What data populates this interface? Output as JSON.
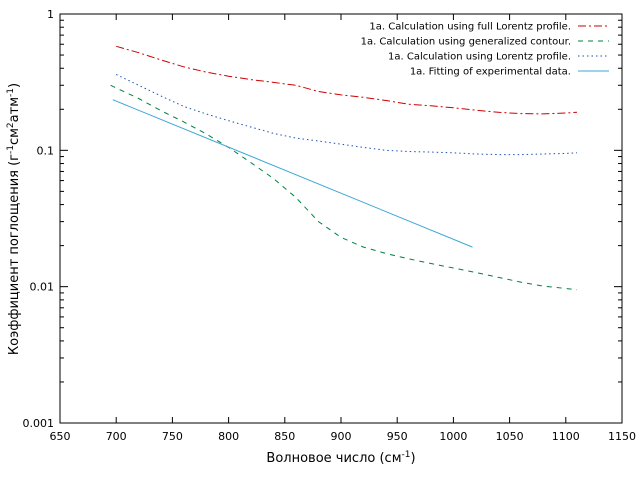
{
  "chart_data": {
    "type": "line",
    "xlabel": "Волновое число (см",
    "xlabel_sup": "-1",
    "xlabel_tail": ")",
    "ylabel_parts": [
      "Коэффициент поглощения (г",
      "-1",
      "см",
      "2",
      "атм",
      "-1",
      ")"
    ],
    "xlim": [
      650,
      1150
    ],
    "ylim": [
      0.001,
      1
    ],
    "yscale": "log",
    "grid": false,
    "legend_position": "top-right",
    "x_ticks": [
      650,
      700,
      750,
      800,
      850,
      900,
      950,
      1000,
      1050,
      1100,
      1150
    ],
    "x_tick_labels": [
      "650",
      "700",
      "750",
      "800",
      "850",
      "900",
      "950",
      "1000",
      "1050",
      "1100",
      "1150"
    ],
    "y_ticks": [
      0.001,
      0.01,
      0.1,
      1
    ],
    "y_tick_labels": [
      "0.001",
      "0.01",
      "0.1",
      "1"
    ],
    "series": [
      {
        "name": "1a. Calculation using full Lorentz profile.",
        "color": "#cc0000",
        "dash": "8,3,2,3",
        "x": [
          700,
          720,
          740,
          760,
          780,
          800,
          820,
          840,
          860,
          880,
          900,
          920,
          940,
          960,
          980,
          1000,
          1020,
          1040,
          1060,
          1080,
          1100,
          1110
        ],
        "y": [
          0.58,
          0.52,
          0.46,
          0.41,
          0.375,
          0.35,
          0.33,
          0.315,
          0.3,
          0.27,
          0.255,
          0.245,
          0.232,
          0.218,
          0.212,
          0.205,
          0.197,
          0.19,
          0.186,
          0.185,
          0.188,
          0.19
        ]
      },
      {
        "name": "1a. Calculation using generalized contour.",
        "color": "#008040",
        "dash": "5,5",
        "x": [
          695,
          720,
          740,
          760,
          780,
          800,
          820,
          840,
          860,
          880,
          900,
          920,
          940,
          960,
          980,
          1000,
          1020,
          1040,
          1060,
          1080,
          1100,
          1110
        ],
        "y": [
          0.3,
          0.24,
          0.195,
          0.162,
          0.132,
          0.105,
          0.081,
          0.062,
          0.045,
          0.03,
          0.023,
          0.0195,
          0.0175,
          0.016,
          0.0148,
          0.0137,
          0.0127,
          0.0117,
          0.0108,
          0.0101,
          0.0097,
          0.0095
        ]
      },
      {
        "name": "1a. Calculation using Lorentz profile.",
        "color": "#1e50b4",
        "dash": "1.5,3",
        "x": [
          700,
          720,
          740,
          760,
          780,
          800,
          820,
          840,
          860,
          880,
          900,
          920,
          940,
          960,
          980,
          1000,
          1020,
          1040,
          1060,
          1080,
          1100,
          1110
        ],
        "y": [
          0.36,
          0.3,
          0.25,
          0.21,
          0.185,
          0.165,
          0.148,
          0.133,
          0.123,
          0.117,
          0.111,
          0.105,
          0.1,
          0.098,
          0.097,
          0.096,
          0.094,
          0.093,
          0.093,
          0.094,
          0.095,
          0.096
        ]
      },
      {
        "name": "1a. Fitting of experimental data.",
        "color": "#3fa7d6",
        "dash": "",
        "x": [
          697,
          1017
        ],
        "y": [
          0.235,
          0.0195
        ]
      }
    ]
  }
}
